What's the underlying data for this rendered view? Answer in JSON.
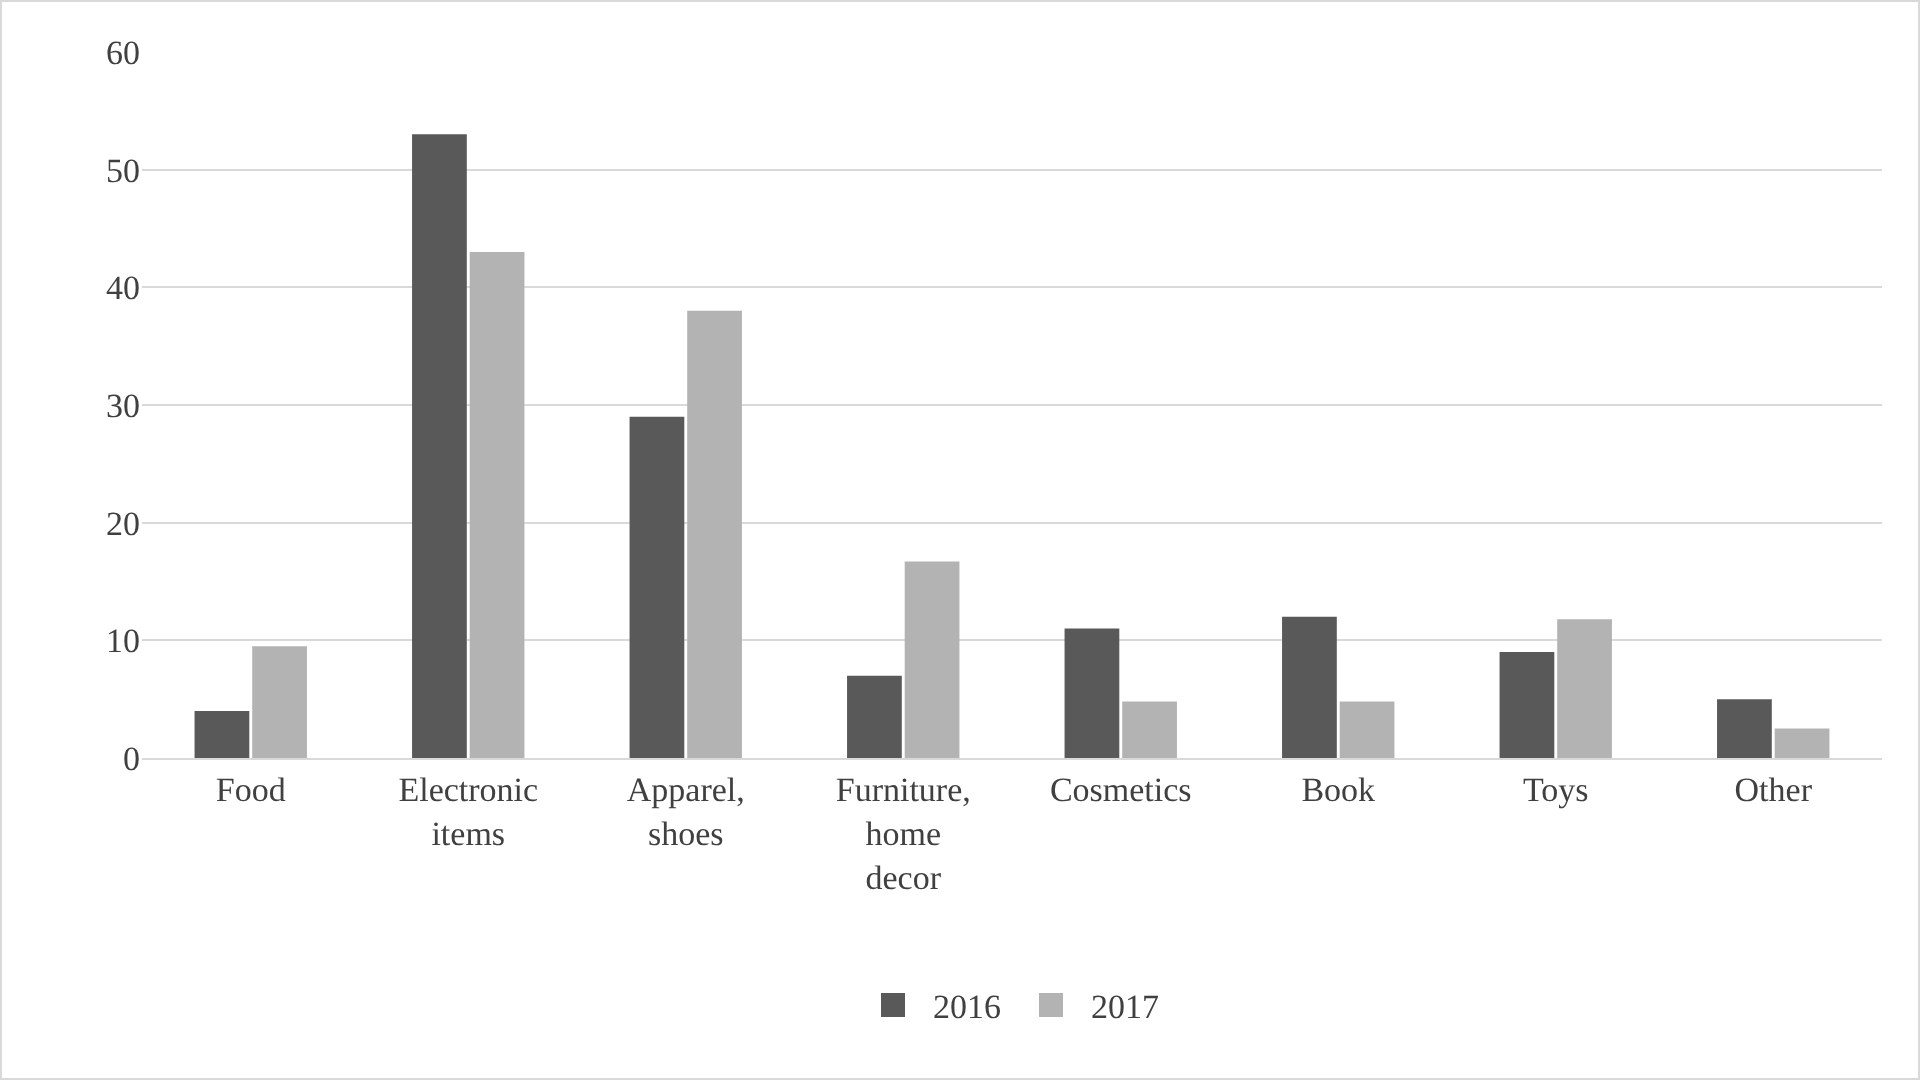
{
  "chart_data": {
    "type": "bar",
    "categories": [
      "Food",
      "Electronic items",
      "Apparel, shoes",
      "Furniture, home decor",
      "Cosmetics",
      "Book",
      "Toys",
      "Other"
    ],
    "series": [
      {
        "name": "2016",
        "color": "#595959",
        "values": [
          4,
          53,
          29,
          7,
          11,
          12,
          9,
          5
        ]
      },
      {
        "name": "2017",
        "color": "#b3b3b3",
        "values": [
          9.5,
          43,
          38,
          16.7,
          4.8,
          4.8,
          11.8,
          2.5
        ]
      }
    ],
    "ylim": [
      0,
      60
    ],
    "yticks": [
      0,
      10,
      20,
      30,
      40,
      50,
      60
    ],
    "grid": "y",
    "legend": "bottom"
  }
}
